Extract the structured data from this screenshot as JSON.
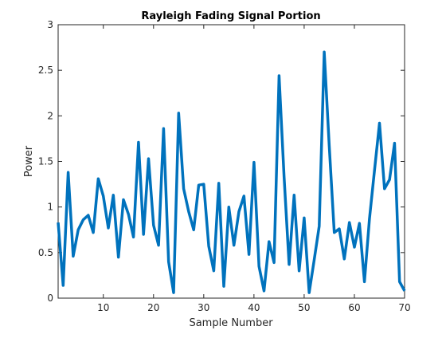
{
  "chart_data": {
    "type": "line",
    "title": "Rayleigh Fading Signal Portion",
    "xlabel": "Sample Number",
    "ylabel": "Power",
    "xlim": [
      1,
      70
    ],
    "ylim": [
      0,
      3
    ],
    "grid": false,
    "legend": "none",
    "box": true,
    "xticks": [
      10,
      20,
      30,
      40,
      50,
      60,
      70
    ],
    "yticks": [
      0,
      0.5,
      1,
      1.5,
      2,
      2.5,
      3
    ],
    "xtick_labels": [
      "10",
      "20",
      "30",
      "40",
      "50",
      "60",
      "70"
    ],
    "ytick_labels": [
      "0",
      "0.5",
      "1",
      "1.5",
      "2",
      "2.5",
      "3"
    ],
    "line_color": "#0072BD",
    "axis_color": "#262626",
    "series": [
      {
        "x": [
          1,
          2,
          3,
          4,
          5,
          6,
          7,
          8,
          9,
          10,
          11,
          12,
          13,
          14,
          15,
          16,
          17,
          18,
          19,
          20,
          21,
          22,
          23,
          24,
          25,
          26,
          27,
          28,
          29,
          30,
          31,
          32,
          33,
          34,
          35,
          36,
          37,
          38,
          39,
          40,
          41,
          42,
          43,
          44,
          45,
          46,
          47,
          48,
          49,
          50,
          51,
          52,
          53,
          54,
          55,
          56,
          57,
          58,
          59,
          60,
          61,
          62,
          63,
          64,
          65,
          66,
          67,
          68,
          69,
          70
        ],
        "values": [
          0.83,
          0.14,
          1.38,
          0.46,
          0.75,
          0.86,
          0.91,
          0.72,
          1.31,
          1.12,
          0.77,
          1.13,
          0.45,
          1.08,
          0.92,
          0.67,
          1.71,
          0.7,
          1.53,
          0.8,
          0.58,
          1.86,
          0.4,
          0.06,
          2.03,
          1.2,
          0.95,
          0.75,
          1.24,
          1.25,
          0.57,
          0.3,
          1.26,
          0.13,
          1.0,
          0.58,
          0.95,
          1.12,
          0.48,
          1.49,
          0.35,
          0.08,
          0.62,
          0.39,
          2.44,
          1.33,
          0.37,
          1.13,
          0.3,
          0.88,
          0.06,
          0.42,
          0.79,
          2.7,
          1.67,
          0.72,
          0.76,
          0.43,
          0.83,
          0.56,
          0.82,
          0.18,
          0.87,
          1.4,
          1.92,
          1.2,
          1.3,
          1.7,
          0.18,
          0.08
        ]
      }
    ]
  }
}
